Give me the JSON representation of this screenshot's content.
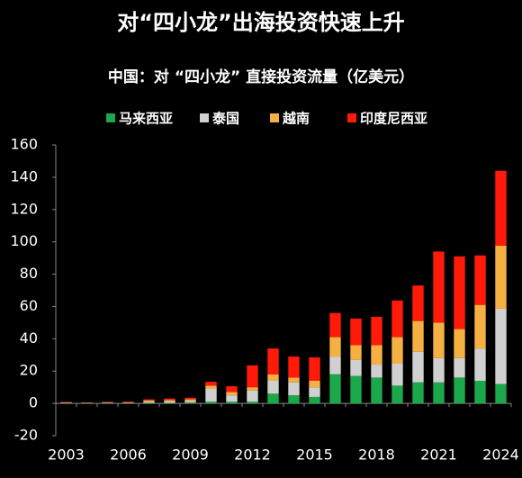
{
  "chart_data": {
    "type": "stacked_bar",
    "title": "对“四小龙”出海投资快速上升",
    "subtitle": "中国：对 “四小龙” 直接投资流量（亿美元）",
    "categories": [
      "2003",
      null,
      null,
      "2006",
      null,
      null,
      "2009",
      null,
      null,
      "2012",
      null,
      null,
      "2015",
      null,
      null,
      "2018",
      null,
      null,
      "2021",
      null,
      null,
      "2024"
    ],
    "series": [
      {
        "name": "马来西亚",
        "color": "#1aa84a",
        "values": [
          0.2,
          0.1,
          0.2,
          0.2,
          0.3,
          0.3,
          0.5,
          1,
          1,
          1,
          6,
          5,
          4,
          18,
          17,
          16,
          11,
          13,
          13,
          16,
          14,
          12
        ]
      },
      {
        "name": "泰国",
        "color": "#d0d0d0",
        "values": [
          0.3,
          0.2,
          0.3,
          0.2,
          0.8,
          0.9,
          1,
          8,
          4,
          7,
          8,
          8,
          6,
          11,
          10,
          8,
          13.6,
          19,
          15,
          12,
          20,
          46.6
        ]
      },
      {
        "name": "越南",
        "color": "#f5b042",
        "values": [
          0.1,
          0.1,
          0.2,
          0.3,
          0.8,
          0.9,
          1,
          2,
          2,
          2,
          4,
          3,
          4,
          12,
          9,
          12,
          16.4,
          19,
          22,
          18,
          27,
          39.1
        ]
      },
      {
        "name": "印度尼西亚",
        "color": "#ff1a0a",
        "values": [
          0.3,
          0.2,
          0.3,
          0.4,
          0.6,
          0.9,
          1,
          2.4,
          3.6,
          13.5,
          16,
          13,
          14.5,
          15,
          16.5,
          17.6,
          22.7,
          22,
          44,
          45,
          30.6,
          46.3
        ]
      }
    ],
    "ylim": [
      -20,
      160
    ],
    "yticks": [
      -20,
      0,
      20,
      40,
      60,
      80,
      100,
      120,
      140,
      160
    ]
  }
}
